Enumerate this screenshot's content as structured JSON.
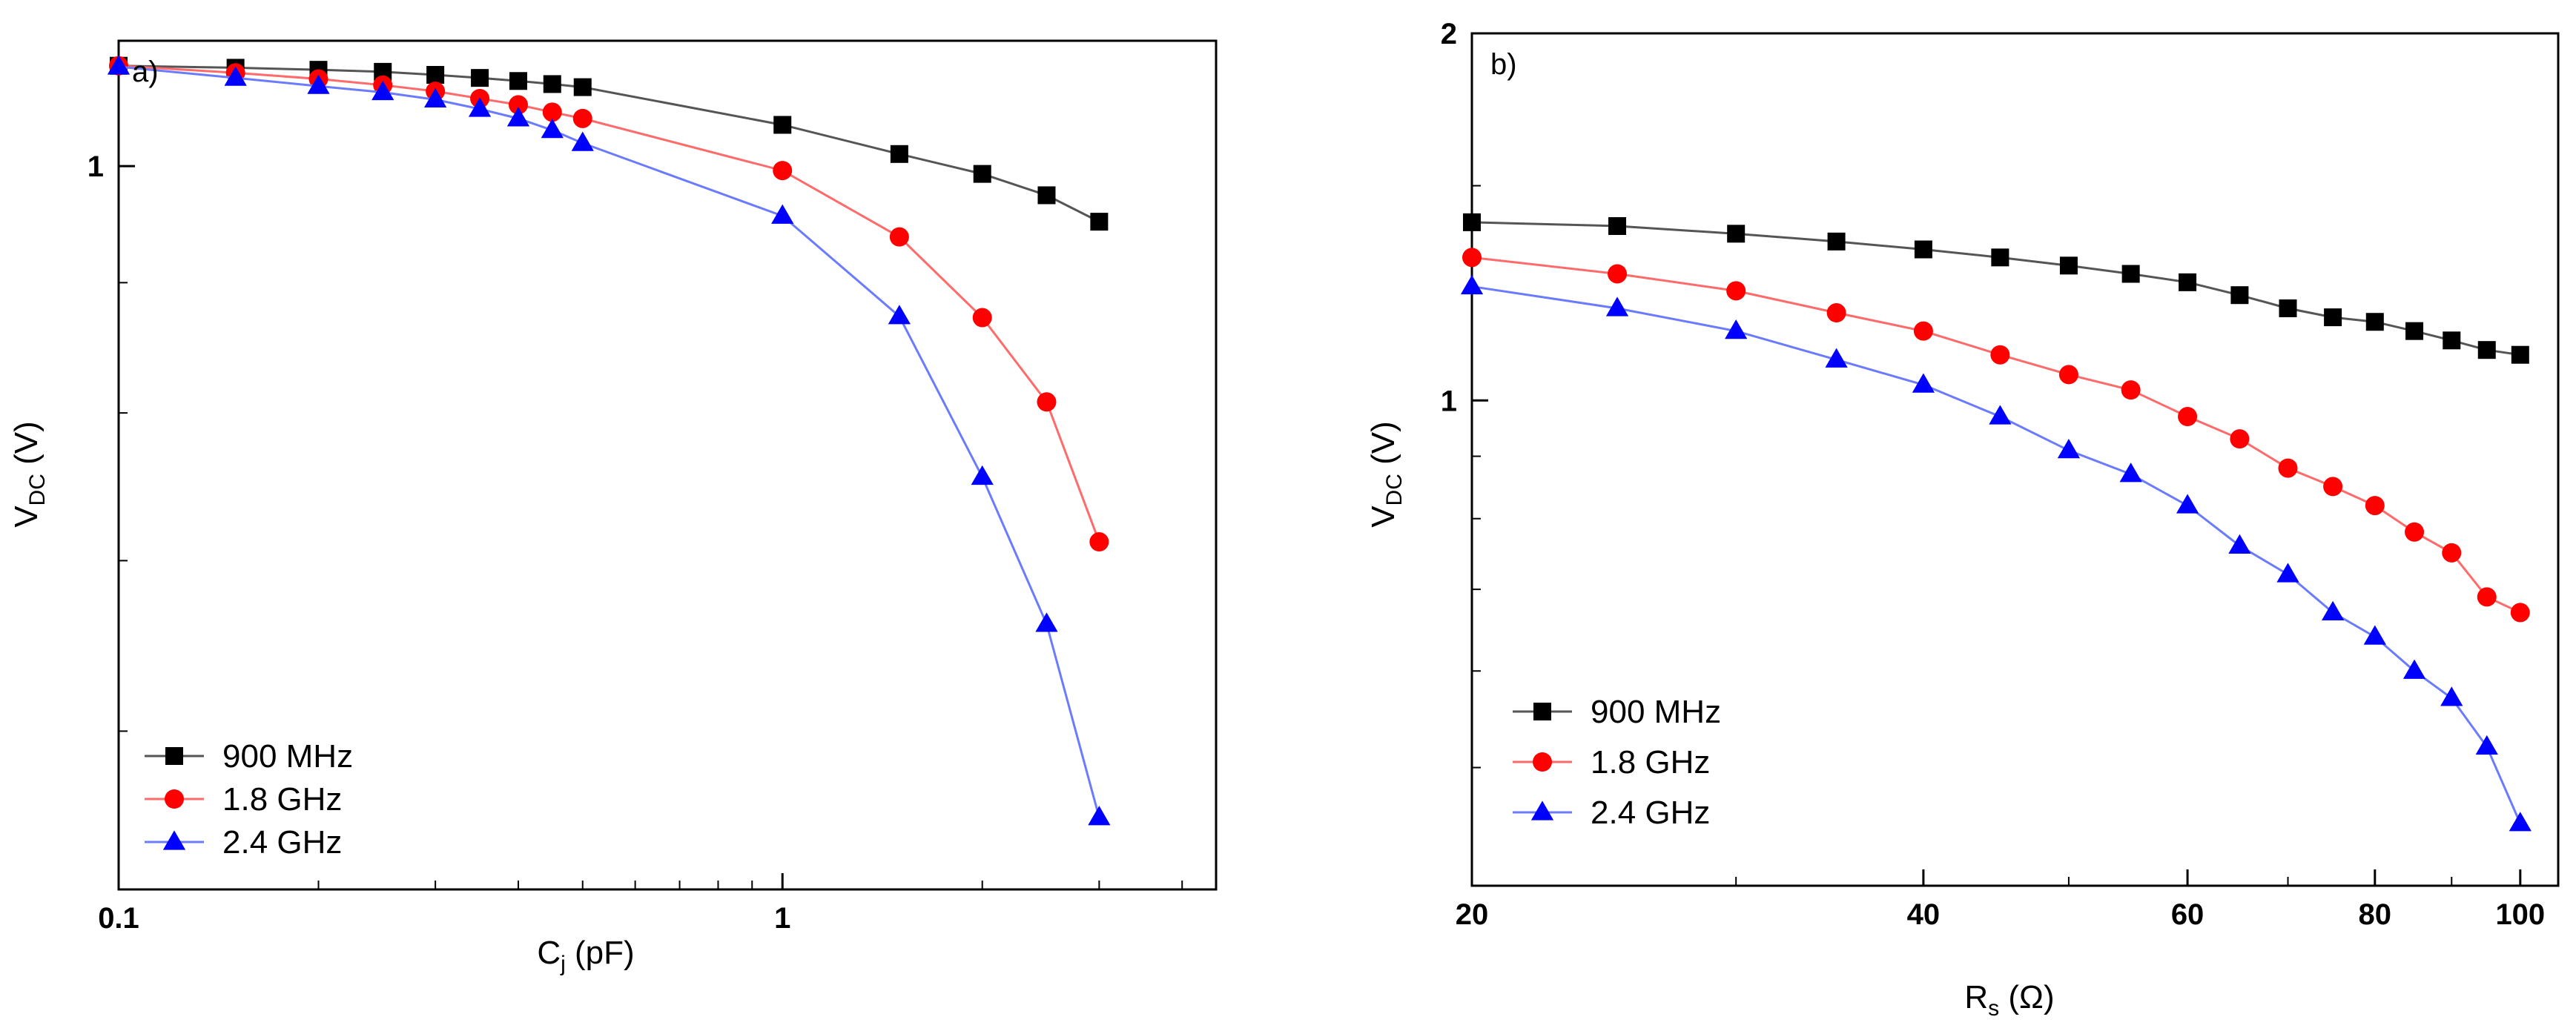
{
  "chart_data": [
    {
      "type": "line",
      "panel_label": "a)",
      "xlabel": "C",
      "xlabel_sub": "j",
      "xlabel_unit": " (pF)",
      "ylabel": "V",
      "ylabel_sub": "DC",
      "ylabel_unit": " (V)",
      "x_scale": "log",
      "y_scale": "log",
      "xlim": [
        0.1,
        4.5
      ],
      "ylim": [
        0.52,
        1.12
      ],
      "x_ticks": [
        0.1,
        1
      ],
      "x_tick_labels": [
        "0.1",
        "1"
      ],
      "y_ticks": [
        1
      ],
      "y_tick_labels": [
        "1"
      ],
      "legend_position": "bottom-left",
      "grid": false,
      "series": [
        {
          "name": "900 MHz",
          "color": "#000000",
          "marker": "square",
          "x": [
            0.1,
            0.15,
            0.2,
            0.25,
            0.3,
            0.35,
            0.4,
            0.45,
            0.5,
            1.0,
            1.5,
            2.0,
            2.5,
            3.0
          ],
          "y": [
            1.095,
            1.093,
            1.091,
            1.089,
            1.086,
            1.083,
            1.08,
            1.077,
            1.074,
            1.038,
            1.011,
            0.993,
            0.974,
            0.951
          ]
        },
        {
          "name": "1.8 GHz",
          "color": "#ff0000",
          "marker": "circle",
          "x": [
            0.1,
            0.15,
            0.2,
            0.25,
            0.3,
            0.35,
            0.4,
            0.45,
            0.5,
            1.0,
            1.5,
            2.0,
            2.5,
            3.0
          ],
          "y": [
            1.095,
            1.088,
            1.082,
            1.076,
            1.07,
            1.063,
            1.057,
            1.05,
            1.044,
            0.996,
            0.938,
            0.872,
            0.808,
            0.712
          ]
        },
        {
          "name": "2.4 GHz",
          "color": "#0000ff",
          "marker": "triangle",
          "x": [
            0.1,
            0.15,
            0.2,
            0.25,
            0.3,
            0.35,
            0.4,
            0.45,
            0.5,
            1.0,
            1.5,
            2.0,
            2.5,
            3.0
          ],
          "y": [
            1.094,
            1.083,
            1.075,
            1.069,
            1.062,
            1.053,
            1.044,
            1.033,
            1.021,
            0.956,
            0.873,
            0.755,
            0.661,
            0.555
          ]
        }
      ]
    },
    {
      "type": "line",
      "panel_label": "b)",
      "xlabel": "R",
      "xlabel_sub": "s",
      "xlabel_unit": " (Ω)",
      "ylabel": "V",
      "ylabel_sub": "DC",
      "ylabel_unit": " (V)",
      "x_scale": "log",
      "y_scale": "log",
      "xlim": [
        20,
        106
      ],
      "ylim": [
        0.4,
        2.0
      ],
      "x_ticks": [
        20,
        40,
        60,
        80,
        100
      ],
      "x_tick_labels": [
        "20",
        "40",
        "60",
        "80",
        "100"
      ],
      "y_ticks": [
        1,
        2
      ],
      "y_tick_labels": [
        "1",
        "2"
      ],
      "legend_position": "bottom-left",
      "grid": false,
      "series": [
        {
          "name": "900 MHz",
          "color": "#000000",
          "marker": "square",
          "x": [
            20,
            25,
            30,
            35,
            40,
            45,
            50,
            55,
            60,
            65,
            70,
            75,
            80,
            85,
            90,
            95,
            100
          ],
          "y": [
            1.4,
            1.39,
            1.37,
            1.35,
            1.33,
            1.31,
            1.29,
            1.27,
            1.25,
            1.22,
            1.19,
            1.17,
            1.16,
            1.14,
            1.12,
            1.1,
            1.09
          ]
        },
        {
          "name": "1.8 GHz",
          "color": "#ff0000",
          "marker": "circle",
          "x": [
            20,
            25,
            30,
            35,
            40,
            45,
            50,
            55,
            60,
            65,
            70,
            75,
            80,
            85,
            90,
            95,
            100
          ],
          "y": [
            1.31,
            1.27,
            1.23,
            1.18,
            1.14,
            1.09,
            1.05,
            1.02,
            0.97,
            0.93,
            0.88,
            0.85,
            0.82,
            0.78,
            0.75,
            0.69,
            0.67
          ]
        },
        {
          "name": "2.4 GHz",
          "color": "#0000ff",
          "marker": "triangle",
          "x": [
            20,
            25,
            30,
            35,
            40,
            45,
            50,
            55,
            60,
            65,
            70,
            75,
            80,
            85,
            90,
            95,
            100
          ],
          "y": [
            1.24,
            1.19,
            1.14,
            1.08,
            1.03,
            0.97,
            0.91,
            0.87,
            0.82,
            0.76,
            0.72,
            0.67,
            0.64,
            0.6,
            0.57,
            0.52,
            0.45
          ]
        }
      ]
    }
  ]
}
